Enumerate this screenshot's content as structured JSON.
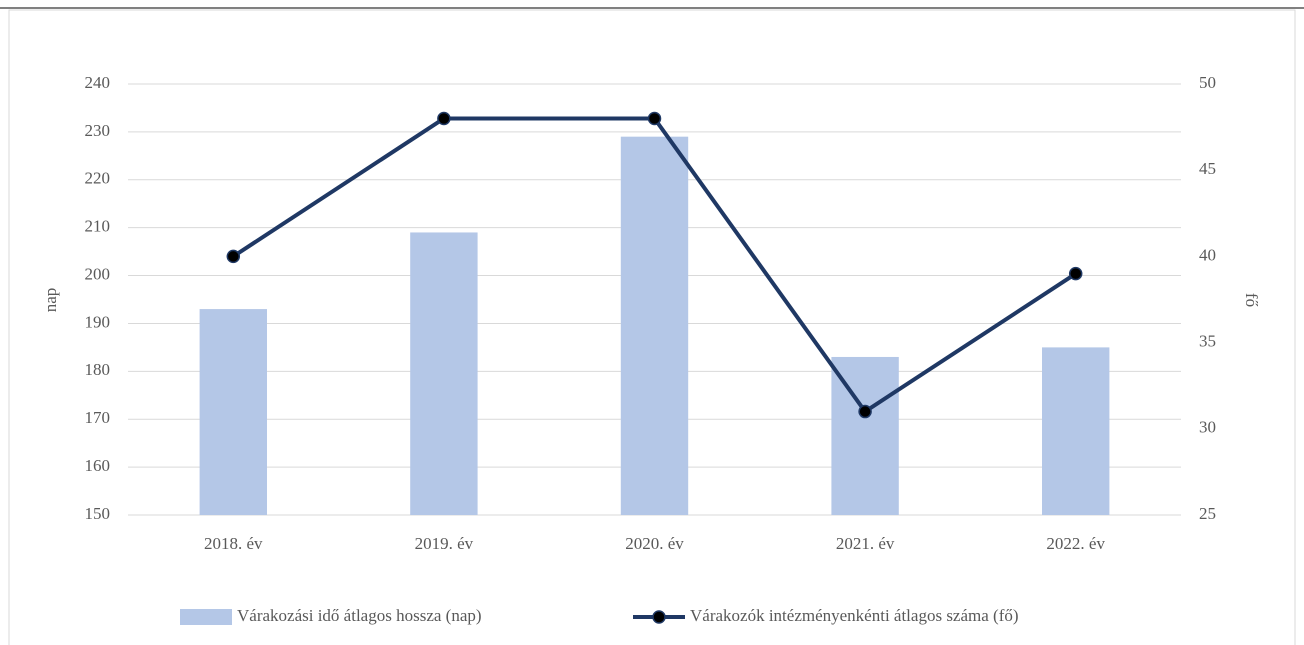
{
  "chart_data": {
    "type": "combo",
    "categories": [
      "2018. év",
      "2019. év",
      "2020. év",
      "2021. év",
      "2022. év"
    ],
    "series": [
      {
        "name": "Várakozási idő átlagos hossza (nap)",
        "type": "bar",
        "color": "#b4c7e7",
        "values": [
          193,
          209,
          229,
          183,
          185
        ]
      },
      {
        "name": "Várakozók intézményenkénti átlagos száma (fő)",
        "type": "line",
        "axis": "y2",
        "color": "#1f3864",
        "values": [
          40,
          48,
          48,
          31,
          39
        ]
      }
    ],
    "ylabel": "nap",
    "y2label": "fő",
    "ylim": [
      150,
      240
    ],
    "yticks": [
      150,
      160,
      170,
      180,
      190,
      200,
      210,
      220,
      230,
      240
    ],
    "y2lim": [
      25,
      50
    ],
    "y2ticks": [
      25,
      30,
      35,
      40,
      45,
      50
    ],
    "grid": true,
    "legend": "bottom"
  }
}
